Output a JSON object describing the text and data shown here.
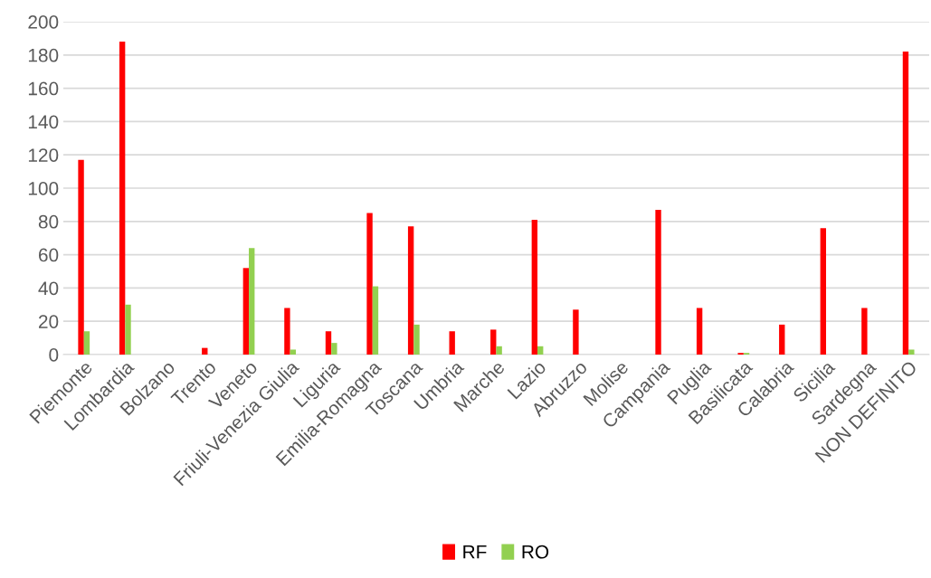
{
  "chart_data": {
    "type": "bar",
    "categories": [
      "Piemonte",
      "Lombardia",
      "Bolzano",
      "Trento",
      "Veneto",
      "Friuli-Venezia Giulia",
      "Liguria",
      "Emilia-Romagna",
      "Toscana",
      "Umbria",
      "Marche",
      "Lazio",
      "Abruzzo",
      "Molise",
      "Campania",
      "Puglia",
      "Basilicata",
      "Calabria",
      "Sicilia",
      "Sardegna",
      "NON DEFINITO"
    ],
    "series": [
      {
        "name": "RF",
        "color": "#ff0000",
        "values": [
          117,
          188,
          0,
          4,
          52,
          28,
          14,
          85,
          77,
          14,
          15,
          81,
          27,
          0,
          87,
          28,
          1,
          18,
          76,
          28,
          182
        ]
      },
      {
        "name": "RO",
        "color": "#92d050",
        "values": [
          14,
          30,
          0,
          0,
          64,
          3,
          7,
          41,
          18,
          0,
          5,
          5,
          0,
          0,
          0,
          0,
          1,
          0,
          0,
          0,
          3
        ]
      }
    ],
    "ylim": [
      0,
      200
    ],
    "yticks": [
      0,
      20,
      40,
      60,
      80,
      100,
      120,
      140,
      160,
      180,
      200
    ],
    "grid": "y",
    "legend": "bottom"
  }
}
